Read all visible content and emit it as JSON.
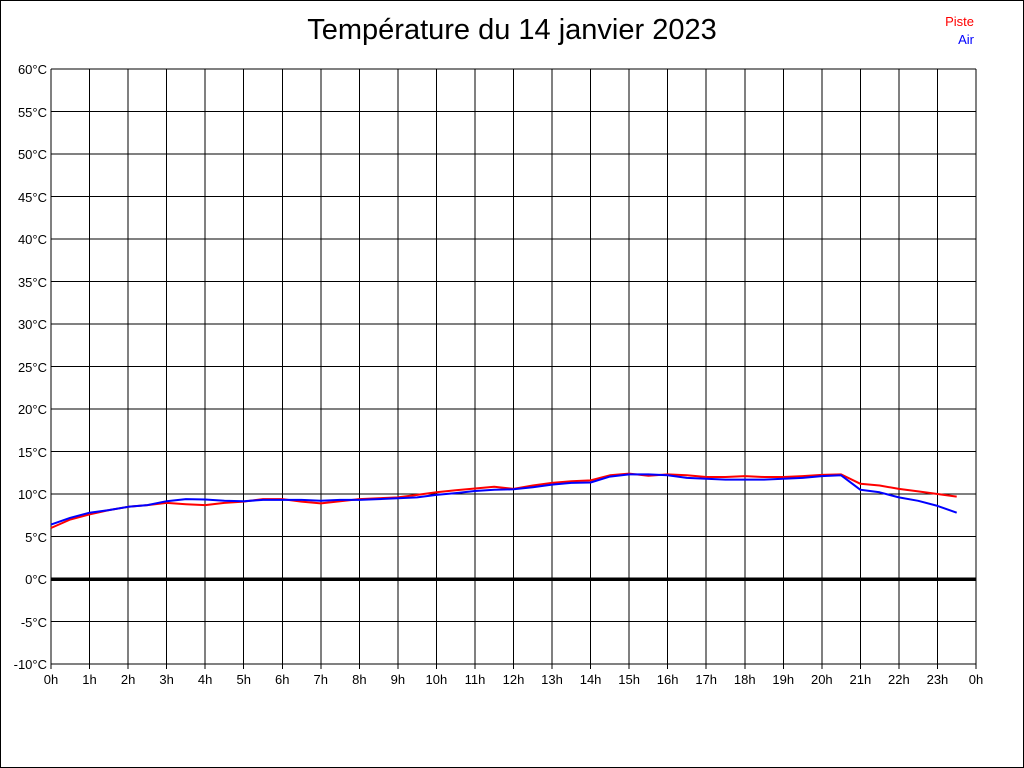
{
  "header": {
    "title": "Température du 14 janvier 2023"
  },
  "legend": {
    "items": [
      {
        "label": "Piste",
        "color": "#ff0000"
      },
      {
        "label": "Air",
        "color": "#0000ff"
      }
    ]
  },
  "colors": {
    "axis": "#000000",
    "background": "#ffffff"
  },
  "chart_data": {
    "type": "line",
    "title": "Température du 14 janvier 2023",
    "xlabel": "",
    "ylabel": "",
    "x_unit": "hour",
    "xlim": [
      0,
      24
    ],
    "ylim": [
      -10,
      60
    ],
    "y_tick_step": 5,
    "x_tick_step": 1,
    "grid": true,
    "legend_position": "top-right",
    "zero_line": {
      "value": 0,
      "color": "#000000",
      "width": 3.5
    },
    "y_tick_labels": [
      "60°C",
      "55°C",
      "50°C",
      "45°C",
      "40°C",
      "35°C",
      "30°C",
      "25°C",
      "20°C",
      "15°C",
      "10°C",
      "5°C",
      "0°C",
      "-5°C",
      "-10°C"
    ],
    "x_tick_labels": [
      "0h",
      "1h",
      "2h",
      "3h",
      "4h",
      "5h",
      "6h",
      "7h",
      "8h",
      "9h",
      "10h",
      "11h",
      "12h",
      "13h",
      "14h",
      "15h",
      "16h",
      "17h",
      "18h",
      "19h",
      "20h",
      "21h",
      "22h",
      "23h",
      "0h"
    ],
    "x": [
      0,
      0.5,
      1,
      1.5,
      2,
      2.5,
      3,
      3.5,
      4,
      4.5,
      5,
      5.5,
      6,
      6.5,
      7,
      7.5,
      8,
      8.5,
      9,
      9.5,
      10,
      10.5,
      11,
      11.5,
      12,
      12.5,
      13,
      13.5,
      14,
      14.5,
      15,
      15.5,
      16,
      16.5,
      17,
      17.5,
      18,
      18.5,
      19,
      19.5,
      20,
      20.5,
      21,
      21.5,
      22,
      22.5,
      23,
      23.5
    ],
    "series": [
      {
        "name": "Piste",
        "color": "#ff0000",
        "values": [
          6.0,
          7.0,
          7.6,
          8.1,
          8.5,
          8.7,
          8.95,
          8.8,
          8.7,
          8.95,
          9.1,
          9.4,
          9.4,
          9.1,
          8.9,
          9.15,
          9.4,
          9.5,
          9.6,
          9.9,
          10.2,
          10.45,
          10.65,
          10.85,
          10.6,
          11.0,
          11.3,
          11.5,
          11.6,
          12.2,
          12.4,
          12.15,
          12.3,
          12.2,
          12.0,
          12.0,
          12.1,
          12.0,
          12.0,
          12.1,
          12.25,
          12.3,
          11.2,
          11.0,
          10.6,
          10.3,
          10.0,
          9.7
        ]
      },
      {
        "name": "Air",
        "color": "#0000ff",
        "values": [
          6.4,
          7.2,
          7.8,
          8.1,
          8.5,
          8.7,
          9.15,
          9.4,
          9.35,
          9.2,
          9.15,
          9.3,
          9.3,
          9.3,
          9.2,
          9.3,
          9.3,
          9.4,
          9.5,
          9.6,
          9.9,
          10.1,
          10.35,
          10.5,
          10.55,
          10.8,
          11.1,
          11.3,
          11.35,
          12.05,
          12.3,
          12.3,
          12.2,
          11.9,
          11.8,
          11.7,
          11.7,
          11.7,
          11.8,
          11.9,
          12.1,
          12.2,
          10.5,
          10.2,
          9.6,
          9.2,
          8.6,
          7.8
        ]
      }
    ]
  }
}
